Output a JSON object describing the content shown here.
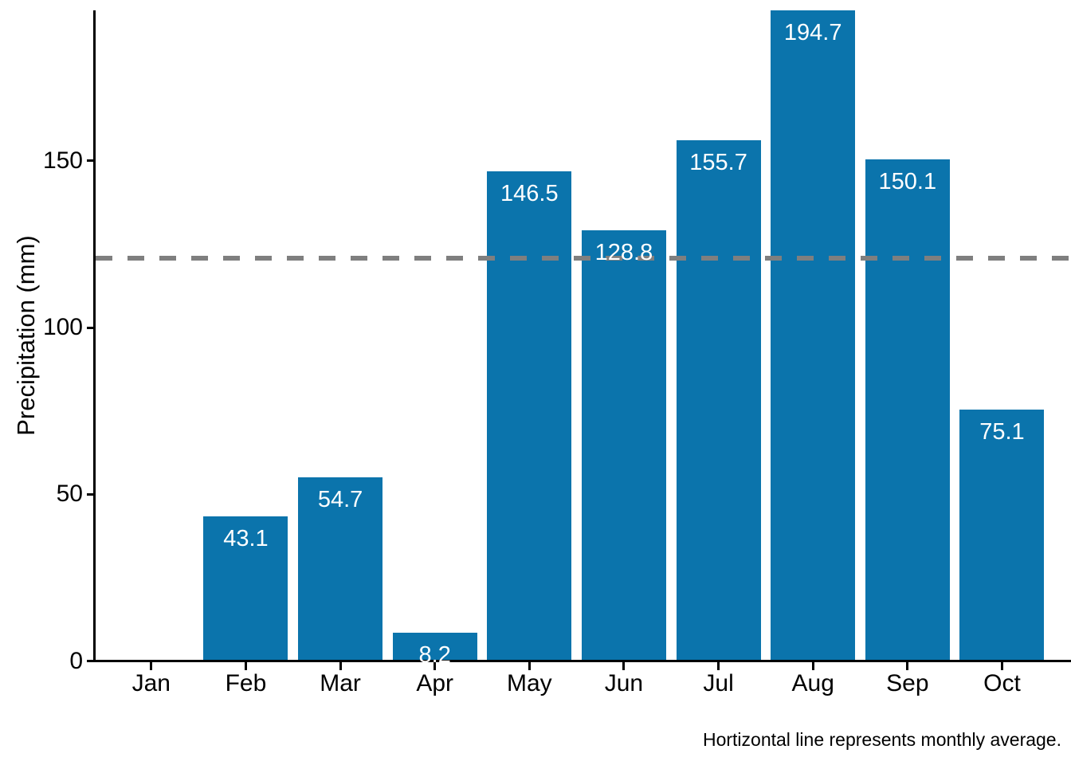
{
  "caption": "Hortizontal line represents monthly average.",
  "colors": {
    "bar": "#0B74AC",
    "avg_line": "#7F7F7F",
    "axis": "#000000",
    "bar_label_text": "#FFFFFF",
    "background": "#FFFFFF"
  },
  "chart_data": {
    "type": "bar",
    "title": "",
    "xlabel": "",
    "ylabel": "Precipitation (mm)",
    "categories": [
      "Jan",
      "Feb",
      "Mar",
      "Apr",
      "May",
      "Jun",
      "Jul",
      "Aug",
      "Sep",
      "Oct"
    ],
    "values": [
      0,
      43.1,
      54.7,
      8.2,
      146.5,
      128.8,
      155.7,
      194.7,
      150.1,
      75.1
    ],
    "bar_labels": [
      "",
      "43.1",
      "54.7",
      "8.2",
      "146.5",
      "128.8",
      "155.7",
      "194.7",
      "150.1",
      "75.1"
    ],
    "y_ticks": [
      0,
      50,
      100,
      150
    ],
    "ylim": [
      0,
      194.7
    ],
    "average_line_value": 120.8,
    "average_line_style": "dashed",
    "grid": false,
    "legend": false,
    "annotation": "Hortizontal line represents monthly average."
  }
}
